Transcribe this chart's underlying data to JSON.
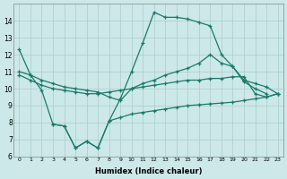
{
  "xlabel": "Humidex (Indice chaleur)",
  "background_color": "#cce8e8",
  "grid_color": "#aacccc",
  "line_color": "#1a7a6a",
  "xlim": [
    -0.5,
    23.5
  ],
  "ylim": [
    6,
    15
  ],
  "xticks": [
    0,
    1,
    2,
    3,
    4,
    5,
    6,
    7,
    8,
    9,
    10,
    11,
    12,
    13,
    14,
    15,
    16,
    17,
    18,
    19,
    20,
    21,
    22,
    23
  ],
  "yticks": [
    6,
    7,
    8,
    9,
    10,
    11,
    12,
    13,
    14
  ],
  "line1": {
    "x": [
      0,
      1,
      2,
      3,
      4,
      5,
      6,
      7,
      8,
      9,
      10,
      11,
      12,
      13,
      14,
      15,
      16,
      17,
      18,
      19,
      20,
      21,
      22
    ],
    "y": [
      12.3,
      10.8,
      9.9,
      7.9,
      7.8,
      6.5,
      6.9,
      6.5,
      8.1,
      9.4,
      11.0,
      12.7,
      14.5,
      14.2,
      14.2,
      14.1,
      13.9,
      13.7,
      12.0,
      11.3,
      10.4,
      10.0,
      9.7
    ]
  },
  "line2": {
    "x": [
      0,
      1,
      2,
      3,
      4,
      5,
      6,
      7,
      8,
      9,
      10,
      11,
      12,
      13,
      14,
      15,
      16,
      17,
      18,
      19,
      20,
      21,
      22,
      23
    ],
    "y": [
      11.0,
      10.8,
      10.5,
      10.3,
      10.1,
      10.0,
      9.9,
      9.8,
      9.5,
      9.3,
      10.0,
      10.3,
      10.5,
      10.8,
      11.0,
      11.2,
      11.5,
      12.0,
      11.5,
      11.3,
      10.5,
      10.3,
      10.1,
      9.7
    ]
  },
  "line3": {
    "x": [
      0,
      1,
      2,
      3,
      4,
      5,
      6,
      7,
      8,
      9,
      10,
      11,
      12,
      13,
      14,
      15,
      16,
      17,
      18,
      19,
      20,
      21,
      22,
      23
    ],
    "y": [
      10.8,
      10.5,
      10.2,
      10.0,
      9.9,
      9.8,
      9.7,
      9.7,
      9.8,
      9.9,
      10.0,
      10.1,
      10.2,
      10.3,
      10.4,
      10.5,
      10.5,
      10.6,
      10.6,
      10.7,
      10.7,
      9.7,
      9.5,
      9.7
    ]
  },
  "line4": {
    "x": [
      3,
      4,
      5,
      6,
      7,
      8,
      9,
      10,
      11,
      12,
      13,
      14,
      15,
      16,
      17,
      18,
      19,
      20,
      21,
      22,
      23
    ],
    "y": [
      7.9,
      7.8,
      6.5,
      6.9,
      6.5,
      8.1,
      8.3,
      8.5,
      8.6,
      8.7,
      8.8,
      8.9,
      9.0,
      9.05,
      9.1,
      9.15,
      9.2,
      9.3,
      9.4,
      9.5,
      9.7
    ]
  }
}
